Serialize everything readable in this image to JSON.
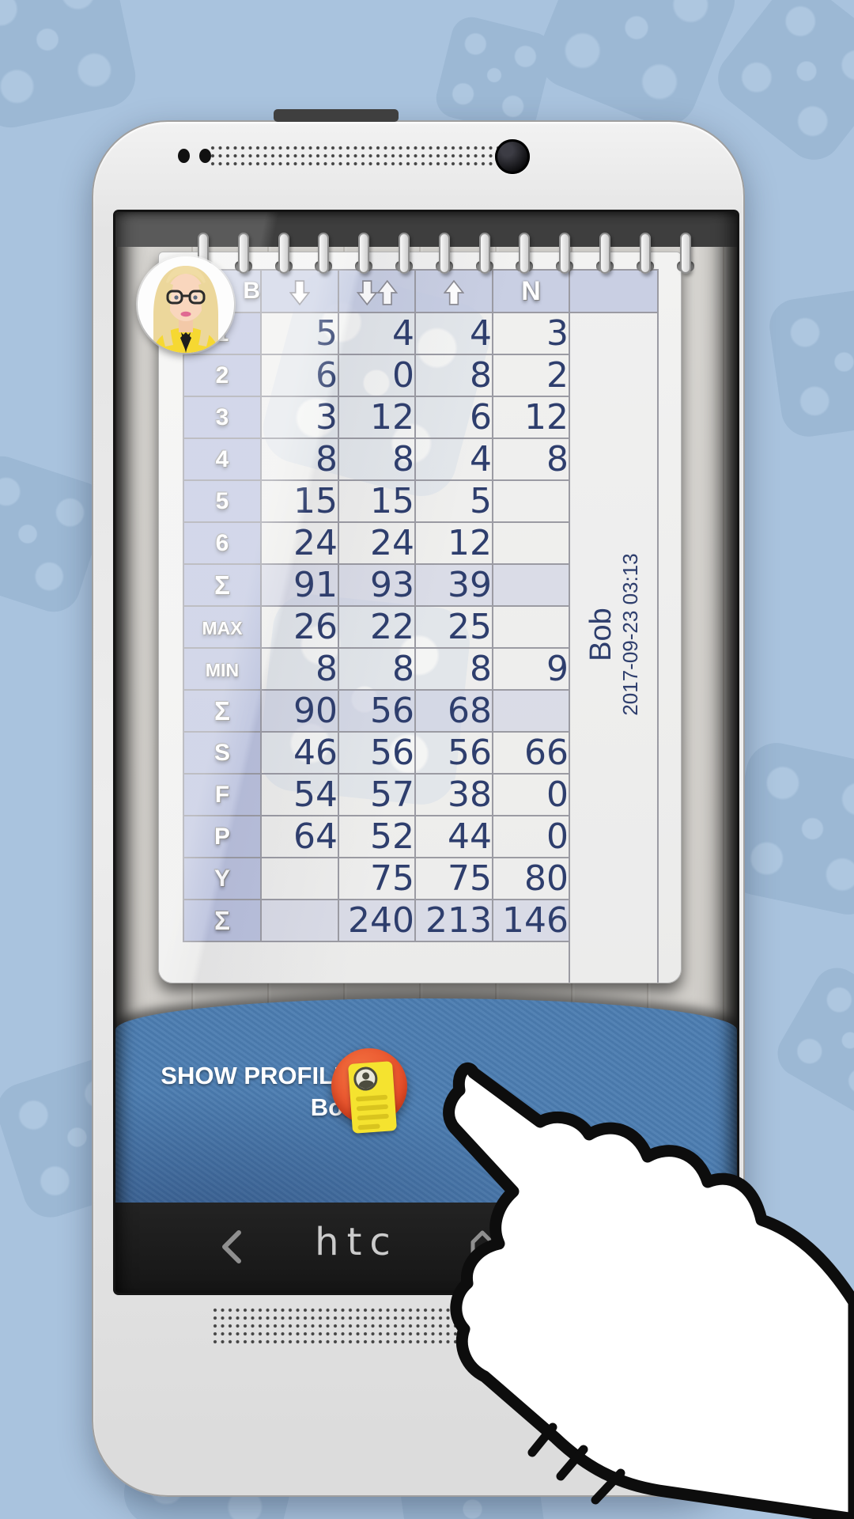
{
  "scorecard": {
    "player_initial": "B",
    "player_name": "Bob",
    "game_datetime": "2017-09-23 03:13",
    "columns": [
      {
        "id": "down",
        "icon": "down-arrow"
      },
      {
        "id": "down_up",
        "icon": "down-up-arrows"
      },
      {
        "id": "up",
        "icon": "up-arrow"
      },
      {
        "id": "announce",
        "label": "N"
      }
    ],
    "rows": [
      {
        "label": "1",
        "type": "normal",
        "values": [
          "5",
          "4",
          "4",
          "3"
        ]
      },
      {
        "label": "2",
        "type": "normal",
        "values": [
          "6",
          "0",
          "8",
          "2"
        ]
      },
      {
        "label": "3",
        "type": "normal",
        "values": [
          "3",
          "12",
          "6",
          "12"
        ]
      },
      {
        "label": "4",
        "type": "normal",
        "values": [
          "8",
          "8",
          "4",
          "8"
        ]
      },
      {
        "label": "5",
        "type": "normal",
        "values": [
          "15",
          "15",
          "5",
          ""
        ]
      },
      {
        "label": "6",
        "type": "normal",
        "values": [
          "24",
          "24",
          "12",
          ""
        ]
      },
      {
        "label": "Σ",
        "type": "sum",
        "values": [
          "91",
          "93",
          "39",
          ""
        ]
      },
      {
        "label": "MAX",
        "type": "normal",
        "values": [
          "26",
          "22",
          "25",
          ""
        ]
      },
      {
        "label": "MIN",
        "type": "normal",
        "values": [
          "8",
          "8",
          "8",
          "9"
        ]
      },
      {
        "label": "Σ",
        "type": "sum",
        "values": [
          "90",
          "56",
          "68",
          ""
        ]
      },
      {
        "label": "S",
        "type": "normal",
        "values": [
          "46",
          "56",
          "56",
          "66"
        ]
      },
      {
        "label": "F",
        "type": "normal",
        "values": [
          "54",
          "57",
          "38",
          "0"
        ]
      },
      {
        "label": "P",
        "type": "normal",
        "values": [
          "64",
          "52",
          "44",
          "0"
        ]
      },
      {
        "label": "Y",
        "type": "normal",
        "values": [
          "",
          "75",
          "75",
          "80"
        ]
      },
      {
        "label": "Σ",
        "type": "sum",
        "values": [
          "",
          "240",
          "213",
          "146"
        ]
      }
    ]
  },
  "footer": {
    "show_profile_label": "SHOW PROFILE:",
    "player_name": "Bob",
    "button_icon": "profile-card"
  },
  "phone": {
    "brand": "htc",
    "nav": {
      "back_icon": "back-chevron",
      "home_icon": "home"
    }
  },
  "colors": {
    "bg_blue": "#a9c3de",
    "digit_ink": "#2e3e6d",
    "panel_blue": "#4b7cb0",
    "button_orange": "#e9522c",
    "card_yellow": "#f5e32f",
    "header_cell": "#c6cce2",
    "label_cell": "#b7bfdb",
    "sum_cell": "#d4d7e5"
  }
}
